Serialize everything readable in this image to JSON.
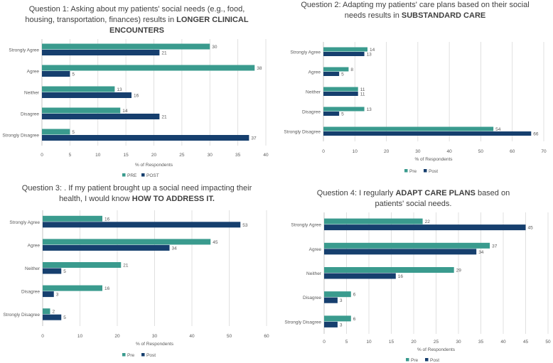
{
  "chart_data": [
    {
      "type": "bar",
      "orientation": "horizontal",
      "title_prefix": "Question 1: Asking about my patients' social needs (e.g., food, housing, transportation, finances) results in ",
      "title_bold": "LONGER CLINICAL ENCOUNTERS",
      "categories": [
        "Strongly Agree",
        "Agree",
        "Neither",
        "Disagree",
        "Strongly Disagree"
      ],
      "series": [
        {
          "name": "PRE",
          "color": "#3a9b8e",
          "values": [
            30,
            38,
            13,
            14,
            5
          ]
        },
        {
          "name": "POST",
          "color": "#163f6e",
          "values": [
            21,
            5,
            16,
            21,
            37
          ]
        }
      ],
      "xlabel": "% of Respondents",
      "xlim": [
        0,
        40
      ],
      "ticks": [
        0,
        5,
        10,
        15,
        20,
        25,
        30,
        35,
        40
      ],
      "legend": "bottom"
    },
    {
      "type": "bar",
      "orientation": "horizontal",
      "title_prefix": "Question 2: Adapting my patients' care plans based on their social needs results in ",
      "title_bold": "SUBSTANDARD CARE",
      "categories": [
        "Strongly Agree",
        "Agree",
        "Neither",
        "Disagree",
        "Strongly Disagree"
      ],
      "series": [
        {
          "name": "Pre",
          "color": "#3a9b8e",
          "values": [
            14,
            8,
            11,
            13,
            54
          ]
        },
        {
          "name": "Post",
          "color": "#163f6e",
          "values": [
            13,
            5,
            11,
            5,
            66
          ]
        }
      ],
      "xlabel": "% of Respondents",
      "xlim": [
        0,
        70
      ],
      "ticks": [
        0,
        10,
        20,
        30,
        40,
        50,
        60,
        70
      ],
      "legend": "bottom"
    },
    {
      "type": "bar",
      "orientation": "horizontal",
      "title_prefix": "Question 3: . If my patient brought up a social need impacting their health, I would know ",
      "title_bold": "HOW TO ADDRESS IT.",
      "categories": [
        "Strongly Agree",
        "Agree",
        "Neither",
        "Disagree",
        "Strongly Disagree"
      ],
      "series": [
        {
          "name": "Pre",
          "color": "#3a9b8e",
          "values": [
            16,
            45,
            21,
            16,
            2
          ]
        },
        {
          "name": "Post",
          "color": "#163f6e",
          "values": [
            53,
            34,
            5,
            3,
            5
          ]
        }
      ],
      "xlabel": "% of Respondents",
      "xlim": [
        0,
        60
      ],
      "ticks": [
        0,
        10,
        20,
        30,
        40,
        50,
        60
      ],
      "legend": "bottom"
    },
    {
      "type": "bar",
      "orientation": "horizontal",
      "title_prefix": "Question 4: I regularly ",
      "title_bold": "ADAPT CARE PLANS",
      "title_suffix": " based on patients' social needs.",
      "categories": [
        "Strongly Agree",
        "Agree",
        "Neither",
        "Disagree",
        "Strongly Disagree"
      ],
      "series": [
        {
          "name": "Pre",
          "color": "#3a9b8e",
          "values": [
            22,
            37,
            29,
            6,
            6
          ]
        },
        {
          "name": "Post",
          "color": "#163f6e",
          "values": [
            45,
            34,
            16,
            3,
            3
          ]
        }
      ],
      "xlabel": "% of Respondents",
      "xlim": [
        0,
        50
      ],
      "ticks": [
        0,
        5,
        10,
        15,
        20,
        25,
        30,
        35,
        40,
        45,
        50
      ],
      "legend": "bottom"
    }
  ]
}
